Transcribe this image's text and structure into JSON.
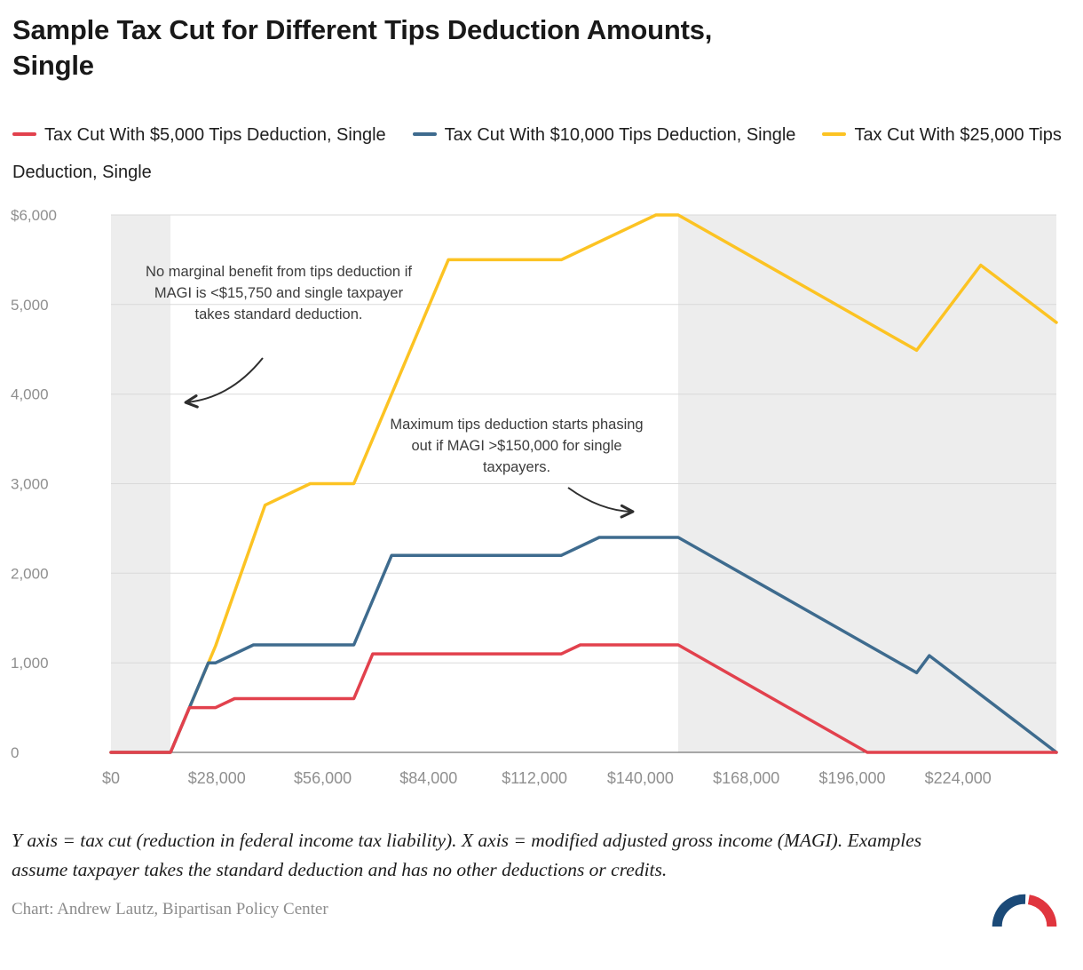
{
  "header": {
    "title_lines": [
      "Sample Tax Cut for Different Tips Deduction Amounts,",
      "Single"
    ]
  },
  "legend": [
    {
      "label": "Tax Cut With $5,000 Tips Deduction, Single",
      "color": "#e2414d"
    },
    {
      "label": "Tax Cut With $10,000 Tips Deduction, Single",
      "color": "#3e6b8e"
    },
    {
      "label": "Tax Cut With $25,000 Tips Deduction, Single",
      "color": "#fcc323"
    }
  ],
  "chart_data": {
    "type": "line",
    "title": "Sample Tax Cut for Different Tips Deduction Amounts, Single",
    "xlabel": "Modified adjusted gross income (MAGI)",
    "ylabel": "Tax cut (reduction in federal income tax liability)",
    "xlim": [
      0,
      250000
    ],
    "ylim": [
      0,
      6000
    ],
    "grid": "horizontal",
    "legend_position": "top",
    "x_ticks": [
      {
        "value": 0,
        "label": "$0"
      },
      {
        "value": 28000,
        "label": "$28,000"
      },
      {
        "value": 56000,
        "label": "$56,000"
      },
      {
        "value": 84000,
        "label": "$84,000"
      },
      {
        "value": 112000,
        "label": "$112,000"
      },
      {
        "value": 140000,
        "label": "$140,000"
      },
      {
        "value": 168000,
        "label": "$168,000"
      },
      {
        "value": 196000,
        "label": "$196,000"
      },
      {
        "value": 224000,
        "label": "$224,000"
      }
    ],
    "y_ticks": [
      {
        "value": 0,
        "label": "0"
      },
      {
        "value": 1000,
        "label": "1,000"
      },
      {
        "value": 2000,
        "label": "2,000"
      },
      {
        "value": 3000,
        "label": "3,000"
      },
      {
        "value": 4000,
        "label": "4,000"
      },
      {
        "value": 5000,
        "label": "5,000"
      },
      {
        "value": 6000,
        "label": "$6,000"
      }
    ],
    "shaded_regions": [
      {
        "from": 0,
        "to": 15750
      },
      {
        "from": 150000,
        "to": 250000
      }
    ],
    "colors": {
      "shade": "#ededed",
      "grid": "#dadada",
      "axis": "#565656",
      "tick_label": "#8f8f8f"
    },
    "series": [
      {
        "name": "Tax Cut With $5,000 Tips Deduction, Single",
        "color": "#e2414d",
        "points": [
          [
            0,
            0
          ],
          [
            15750,
            0
          ],
          [
            20750,
            500
          ],
          [
            27675,
            500
          ],
          [
            32675,
            600
          ],
          [
            64225,
            600
          ],
          [
            69225,
            1100
          ],
          [
            119100,
            1100
          ],
          [
            124100,
            1200
          ],
          [
            150000,
            1200
          ],
          [
            200000,
            0
          ],
          [
            250000,
            0
          ]
        ]
      },
      {
        "name": "Tax Cut With $10,000 Tips Deduction, Single",
        "color": "#3e6b8e",
        "points": [
          [
            0,
            0
          ],
          [
            15750,
            0
          ],
          [
            25750,
            1000
          ],
          [
            27675,
            1000
          ],
          [
            37675,
            1200
          ],
          [
            64225,
            1200
          ],
          [
            74225,
            2200
          ],
          [
            119100,
            2200
          ],
          [
            129100,
            2400
          ],
          [
            150000,
            2400
          ],
          [
            213050,
            890
          ],
          [
            216400,
            1080
          ],
          [
            250000,
            0
          ]
        ]
      },
      {
        "name": "Tax Cut With $25,000 Tips Deduction, Single",
        "color": "#fcc323",
        "points": [
          [
            0,
            0
          ],
          [
            15750,
            0
          ],
          [
            27675,
            1190
          ],
          [
            40750,
            2760
          ],
          [
            52675,
            3000
          ],
          [
            64225,
            3000
          ],
          [
            89225,
            5500
          ],
          [
            119100,
            5500
          ],
          [
            144100,
            6000
          ],
          [
            150000,
            6000
          ],
          [
            213050,
            4490
          ],
          [
            230000,
            5440
          ],
          [
            250000,
            4800
          ]
        ]
      }
    ],
    "annotations": [
      {
        "text": "No marginal benefit from tips deduction if MAGI is <$15,750 and single taxpayer takes standard deduction."
      },
      {
        "text": "Maximum tips deduction starts phasing out if MAGI >$150,000 for single taxpayers."
      }
    ]
  },
  "notes": {
    "text": "Y axis = tax cut (reduction in federal income tax liability). X axis = modified adjusted gross income (MAGI). Examples assume taxpayer takes the standard deduction and has no other deductions or credits."
  },
  "credit": {
    "text": "Chart: Andrew Lautz, Bipartisan Policy Center"
  },
  "logo": {
    "name": "bipartisan-policy-center-logo",
    "blue_color": "#1b4a78",
    "red_color": "#e0353e"
  }
}
